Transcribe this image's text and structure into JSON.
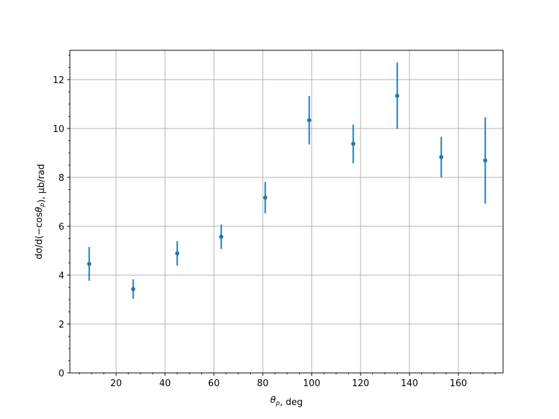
{
  "chart_data": {
    "type": "scatter",
    "errorbars": true,
    "title": "",
    "xlabel": "θ_p, deg",
    "ylabel": "dσ/d(−cosθ_p), μb/rad",
    "xlim": [
      1.1,
      178.3
    ],
    "ylim": [
      0,
      13.2
    ],
    "xticks": [
      20,
      40,
      60,
      80,
      100,
      120,
      140,
      160
    ],
    "yticks": [
      0,
      2,
      4,
      6,
      8,
      10,
      12
    ],
    "x_minor_step": 5,
    "y_minor_step": 0.5,
    "grid": true,
    "color": "#1f77b4",
    "series": [
      {
        "x": [
          9,
          27,
          45,
          63,
          81,
          99,
          117,
          135,
          153,
          171
        ],
        "y": [
          4.46,
          3.43,
          4.89,
          5.57,
          7.17,
          10.34,
          9.37,
          11.34,
          8.83,
          8.69
        ],
        "yerr": [
          0.69,
          0.4,
          0.5,
          0.5,
          0.64,
          0.99,
          0.79,
          1.36,
          0.83,
          1.77
        ]
      }
    ]
  }
}
